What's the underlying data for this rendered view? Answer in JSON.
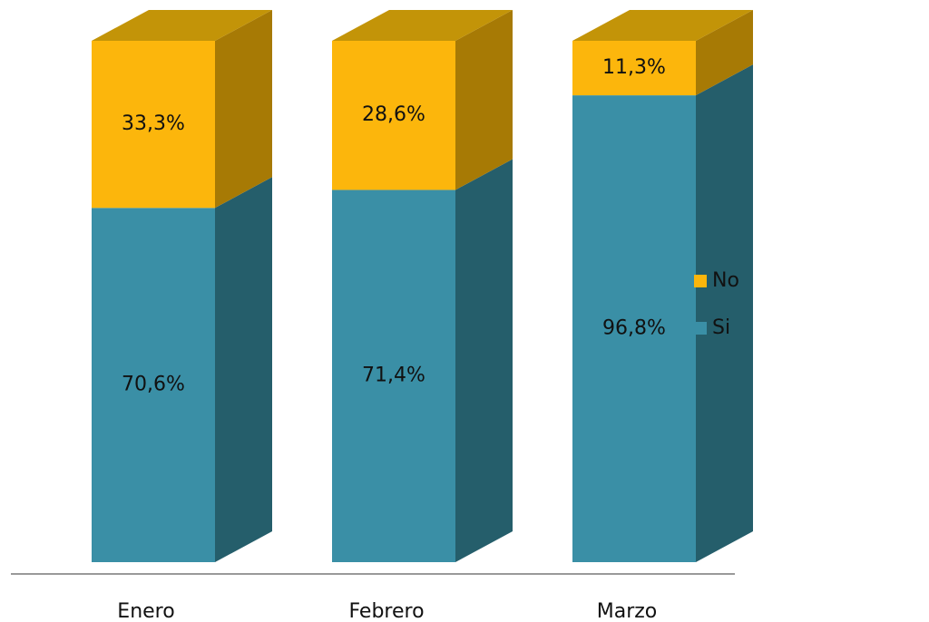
{
  "chart_data": {
    "type": "bar3d",
    "stacking": "percent",
    "categories": [
      "Enero",
      "Febrero",
      "Marzo"
    ],
    "series": [
      {
        "name": "Si",
        "color": "#3a8fa6",
        "side_color": "#255e6b",
        "top_color": "#2f7a8d",
        "values": [
          70.6,
          71.4,
          96.8
        ],
        "value_labels": [
          "70,6%",
          "71,4%",
          "96,8%"
        ]
      },
      {
        "name": "No",
        "color": "#fcb60c",
        "side_color": "#a77a05",
        "top_color": "#c39408",
        "values": [
          33.3,
          28.6,
          11.3
        ],
        "value_labels": [
          "33,3%",
          "28,6%",
          "11,3%"
        ]
      }
    ],
    "legend": "right"
  }
}
